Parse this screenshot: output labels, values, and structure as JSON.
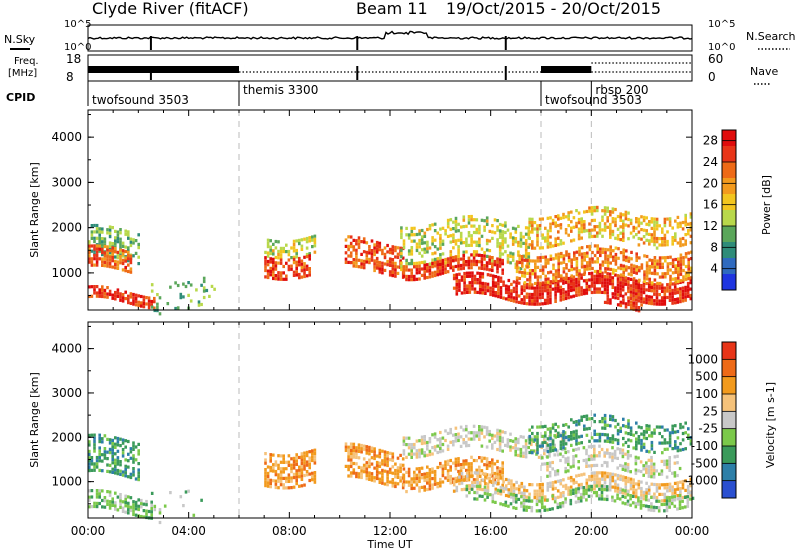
{
  "header": {
    "station": "Clyde River (fitACF)",
    "beam": "Beam 11",
    "date_range": "19/Oct/2015 - 20/Oct/2015"
  },
  "status_panels": {
    "nsky_label": "N.Sky",
    "nsearch_label": "N.Search",
    "freq_label_top": "Freq.",
    "freq_label_bottom": "[MHz]",
    "nave_label": "Nave",
    "cpid_label": "CPID",
    "noise_ticks_left": [
      "10^5",
      "10^0"
    ],
    "noise_ticks_right": [
      "10^5",
      "10^0"
    ],
    "freq_ticks_left": [
      "18",
      "8"
    ],
    "nave_ticks_right": [
      "60",
      "0"
    ],
    "cpid_segments": [
      {
        "label": "twofsound 3503",
        "start_h": 0
      },
      {
        "label": "themis 3300",
        "start_h": 6
      },
      {
        "label": "twofsound 3503",
        "start_h": 18
      },
      {
        "label": "rbsp 200",
        "start_h": 20
      }
    ]
  },
  "chart_data": [
    {
      "type": "heatmap",
      "quantity": "Power",
      "colorbar_label": "Power [dB]",
      "ylabel": "Slant Range [km]",
      "xlabel": "Time UT",
      "x_ticks": [
        "00:00",
        "04:00",
        "08:00",
        "12:00",
        "16:00",
        "20:00",
        "00:00"
      ],
      "y_ticks": [
        "1000",
        "2000",
        "3000",
        "4000"
      ],
      "xlim_hours": [
        0,
        24
      ],
      "ylim_km": [
        180,
        4600
      ],
      "colorbar_ticks": [
        "4",
        "8",
        "12",
        "16",
        "20",
        "24",
        "28"
      ],
      "colorbar_range": [
        0,
        30
      ],
      "colors": [
        "#1f35e0",
        "#2f6abf",
        "#2f8c79",
        "#5aa65a",
        "#b8d84b",
        "#f2c51f",
        "#f29a1d",
        "#ee6a17",
        "#e83518",
        "#e00c0c"
      ],
      "echo_regions": [
        {
          "t0": 0.0,
          "t1": 2.0,
          "r0": 1250,
          "r1": 1950,
          "value": 10,
          "density": 0.55
        },
        {
          "t0": 0.0,
          "t1": 1.7,
          "r0": 1050,
          "r1": 1500,
          "value": 24,
          "density": 0.7
        },
        {
          "t0": 0.0,
          "t1": 2.6,
          "r0": 350,
          "r1": 600,
          "value": 27,
          "density": 0.75
        },
        {
          "t0": 2.5,
          "t1": 5.0,
          "r0": 200,
          "r1": 900,
          "value": 10,
          "density": 0.12
        },
        {
          "t0": 7.0,
          "t1": 9.0,
          "r0": 1450,
          "r1": 1850,
          "value": 14,
          "density": 0.6
        },
        {
          "t0": 7.0,
          "t1": 8.8,
          "r0": 1000,
          "r1": 1450,
          "value": 26,
          "density": 0.65
        },
        {
          "t0": 10.2,
          "t1": 12.5,
          "r0": 1000,
          "r1": 1700,
          "value": 25,
          "density": 0.6
        },
        {
          "t0": 12.4,
          "t1": 17.5,
          "r0": 1200,
          "r1": 2150,
          "value": 14,
          "density": 0.45
        },
        {
          "t0": 12.5,
          "t1": 16.5,
          "r0": 950,
          "r1": 1300,
          "value": 27,
          "density": 0.75
        },
        {
          "t0": 14.5,
          "t1": 24.0,
          "r0": 450,
          "r1": 900,
          "value": 28,
          "density": 0.8
        },
        {
          "t0": 17.0,
          "t1": 24.0,
          "r0": 900,
          "r1": 1500,
          "value": 22,
          "density": 0.6
        },
        {
          "t0": 17.5,
          "t1": 24.0,
          "r0": 1700,
          "r1": 2350,
          "value": 18,
          "density": 0.5
        },
        {
          "t0": 20.5,
          "t1": 22.0,
          "r0": 200,
          "r1": 400,
          "value": 29,
          "density": 0.5
        }
      ]
    },
    {
      "type": "heatmap",
      "quantity": "Velocity",
      "colorbar_label": "Velocity [m s-1]",
      "ylabel": "Slant Range [km]",
      "xlabel": "Time UT",
      "x_ticks": [
        "00:00",
        "04:00",
        "08:00",
        "12:00",
        "16:00",
        "20:00",
        "00:00"
      ],
      "y_ticks": [
        "1000",
        "2000",
        "3000",
        "4000"
      ],
      "xlim_hours": [
        0,
        24
      ],
      "ylim_km": [
        180,
        4600
      ],
      "colorbar_ticks": [
        "1000",
        "500",
        "100",
        "25",
        "-25",
        "-100",
        "-500",
        "-1000"
      ],
      "colors": [
        "#2a4fd0",
        "#2d7fa8",
        "#3a9a5a",
        "#7bc94a",
        "#c8c8c8",
        "#f5c27a",
        "#f29a1d",
        "#ee6a17",
        "#e83518"
      ],
      "echo_regions": [
        {
          "t0": 0.0,
          "t1": 2.0,
          "r0": 1150,
          "r1": 1950,
          "value": 2,
          "density": 0.55
        },
        {
          "t0": 0.0,
          "t1": 2.5,
          "r0": 300,
          "r1": 700,
          "value": 3,
          "density": 0.6
        },
        {
          "t0": 2.5,
          "t1": 4.5,
          "r0": 200,
          "r1": 900,
          "value": 3,
          "density": 0.1
        },
        {
          "t0": 7.0,
          "t1": 9.0,
          "r0": 1000,
          "r1": 1750,
          "value": 6,
          "density": 0.7
        },
        {
          "t0": 10.2,
          "t1": 12.5,
          "r0": 1000,
          "r1": 1750,
          "value": 6,
          "density": 0.65
        },
        {
          "t0": 12.5,
          "t1": 16.5,
          "r0": 900,
          "r1": 1450,
          "value": 6,
          "density": 0.6
        },
        {
          "t0": 12.5,
          "t1": 19.0,
          "r0": 1650,
          "r1": 2150,
          "value": 4,
          "density": 0.55
        },
        {
          "t0": 14.5,
          "t1": 24.0,
          "r0": 700,
          "r1": 1100,
          "value": 5,
          "density": 0.6
        },
        {
          "t0": 15.0,
          "t1": 24.0,
          "r0": 500,
          "r1": 800,
          "value": 3,
          "density": 0.5
        },
        {
          "t0": 17.5,
          "t1": 24.0,
          "r0": 1800,
          "r1": 2400,
          "value": 2,
          "density": 0.45
        },
        {
          "t0": 18.0,
          "t1": 23.5,
          "r0": 1200,
          "r1": 1700,
          "value": 4,
          "density": 0.45
        }
      ]
    }
  ]
}
